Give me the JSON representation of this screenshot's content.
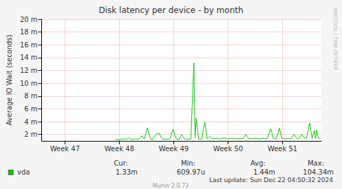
{
  "chart_data": {
    "type": "line",
    "title": "Disk latency per device - by month",
    "y_label": "Average IO Wait (seconds)",
    "x": [
      9.5,
      10,
      10.5,
      11,
      11.2,
      11.5,
      12,
      12.5,
      12.9,
      13.2,
      13.6,
      14,
      14.3,
      14.7,
      15.1,
      15.5,
      16,
      16.5,
      16.9,
      17.3,
      17.7,
      18,
      18.4,
      18.8,
      19.2,
      19.6,
      19.75,
      19.9,
      20.2,
      20.6,
      21,
      21.3,
      21.7,
      22,
      22.5,
      23,
      23.5,
      24,
      24.5,
      25,
      25.5,
      26,
      26.3,
      26.6,
      27,
      27.5,
      28,
      28.5,
      29,
      29.5,
      29.8,
      30.2,
      30.6,
      30.9,
      31.3,
      31.7,
      32.1,
      32.5,
      32.8,
      33.1,
      33.5,
      33.8,
      34.1,
      34.5,
      34.8,
      35.1,
      35.25,
      35.4,
      35.6,
      35.8
    ],
    "series": [
      {
        "name": "vda",
        "color": "#00cc00",
        "values": [
          0.00125,
          0.0012,
          0.0013,
          0.00125,
          0.0015,
          0.0012,
          0.0013,
          0.00125,
          0.0018,
          0.0013,
          0.003,
          0.0013,
          0.0012,
          0.002,
          0.0022,
          0.0013,
          0.00125,
          0.0013,
          0.0028,
          0.0013,
          0.0012,
          0.002,
          0.0013,
          0.00125,
          0.0013,
          0.0132,
          0.0014,
          0.0045,
          0.0013,
          0.00125,
          0.004,
          0.0013,
          0.0017,
          0.0013,
          0.0014,
          0.0013,
          0.0015,
          0.0013,
          0.0014,
          0.00135,
          0.0013,
          0.0014,
          0.002,
          0.0014,
          0.0013,
          0.0014,
          0.0013,
          0.0014,
          0.0013,
          0.0029,
          0.0014,
          0.0013,
          0.003,
          0.0014,
          0.0013,
          0.0014,
          0.0013,
          0.002,
          0.0014,
          0.0013,
          0.002,
          0.0014,
          0.0015,
          0.0038,
          0.0014,
          0.0026,
          0.0013,
          0.0027,
          0.0014,
          0.00133
        ],
        "stats": {
          "labels": [
            "Cur:",
            "Min:",
            "Avg:",
            "Max:"
          ],
          "values": [
            0.00133,
            0.00060997,
            0.00144,
            0.10434
          ],
          "value_labels": [
            "1.33m",
            "609.97u",
            "1.44m",
            "104.34m"
          ]
        }
      }
    ],
    "xlim": [
      0,
      36
    ],
    "xticks": [
      {
        "value": 3,
        "label": "Week 47"
      },
      {
        "value": 10,
        "label": "Week 48"
      },
      {
        "value": 17,
        "label": "Week 49"
      },
      {
        "value": 24,
        "label": "Week 50"
      },
      {
        "value": 31,
        "label": "Week 51"
      }
    ],
    "ylim": [
      0.001,
      0.02
    ],
    "yticks": [
      {
        "value": 0.002,
        "label": "2 m"
      },
      {
        "value": 0.004,
        "label": "4 m"
      },
      {
        "value": 0.006,
        "label": "6 m"
      },
      {
        "value": 0.008,
        "label": "8 m"
      },
      {
        "value": 0.01,
        "label": "10 m"
      },
      {
        "value": 0.012,
        "label": "12 m"
      },
      {
        "value": 0.014,
        "label": "14 m"
      },
      {
        "value": 0.016,
        "label": "16 m"
      },
      {
        "value": 0.018,
        "label": "18 m"
      },
      {
        "value": 0.02,
        "label": "20 m"
      }
    ],
    "grid": true,
    "legend": "bottom-left",
    "last_update": "Last update: Sun Dec 22 04:50:32 2024",
    "footer": "Munin 2.0.73",
    "watermark": "RRDTOOL / TOBI OETIKER"
  }
}
